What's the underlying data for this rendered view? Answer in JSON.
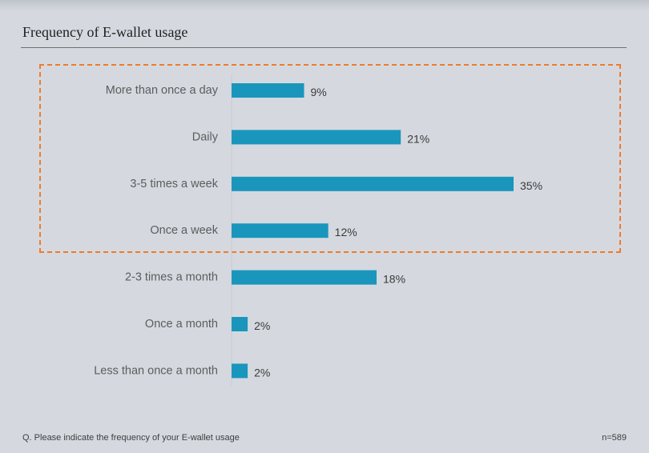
{
  "title": "Frequency of E-wallet usage",
  "footnote": "Q. Please indicate the frequency of your E-wallet usage",
  "sample_size": "n=589",
  "colors": {
    "bar": "#1a96bd",
    "highlight": "#f07b2a",
    "background": "#d5d9df"
  },
  "chart_data": {
    "type": "bar",
    "orientation": "horizontal",
    "title": "Frequency of E-wallet usage",
    "categories": [
      "More than once a day",
      "Daily",
      "3-5 times a week",
      "Once a week",
      "2-3 times a month",
      "Once a month",
      "Less than once a month"
    ],
    "values": [
      9,
      21,
      35,
      12,
      18,
      2,
      2
    ],
    "value_labels": [
      "9%",
      "21%",
      "35%",
      "12%",
      "18%",
      "2%",
      "2%"
    ],
    "unit": "%",
    "xlim": [
      0,
      35
    ],
    "highlighted_categories": [
      "More than once a day",
      "Daily",
      "3-5 times a week",
      "Once a week"
    ],
    "grid": false,
    "legend": "none"
  }
}
